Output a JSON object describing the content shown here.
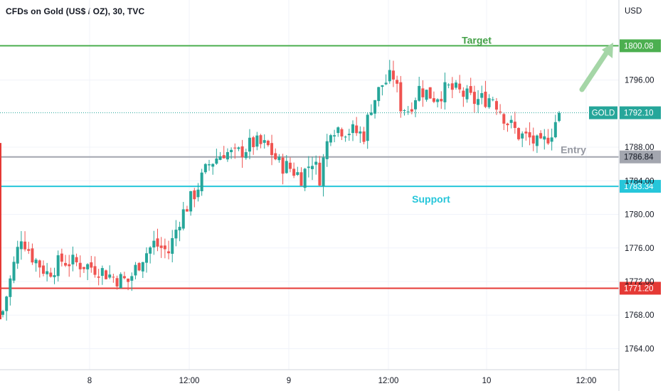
{
  "header": {
    "title": "CFDs on Gold (US$ / OZ), 30, TVC",
    "currency": "USD"
  },
  "chart_data": {
    "type": "candlestick",
    "ylim": [
      1761.5,
      1803.5
    ],
    "y_ticks": [
      "1764.00",
      "1768.00",
      "1772.00",
      "1776.00",
      "1780.00",
      "1784.00",
      "1788.00",
      "1796.00"
    ],
    "x_ticks": [
      "8",
      "12:00",
      "9",
      "12:00",
      "10",
      "12:00"
    ],
    "symbol": "GOLD",
    "last_price": "1792.10",
    "levels": [
      {
        "label": "Target",
        "value": "1800.08",
        "color": "#4caf50",
        "label_color": "#43a047"
      },
      {
        "label": "Entry",
        "value": "1786.84",
        "color": "#a3a6af",
        "label_color": "#9598a1"
      },
      {
        "label": "Support",
        "value": "1783.34",
        "color": "#26c6da",
        "label_color": "#26c6da"
      },
      {
        "label": "",
        "value": "1771.20",
        "color": "#e53935",
        "label_color": "#e53935"
      }
    ],
    "up_color": "#26a69a",
    "down_color": "#ef5350",
    "anchors": [
      [
        0,
        1768.5
      ],
      [
        3,
        1774.0
      ],
      [
        5,
        1777.5
      ],
      [
        8,
        1775.0
      ],
      [
        12,
        1773.0
      ],
      [
        16,
        1774.5
      ],
      [
        22,
        1774.0
      ],
      [
        26,
        1773.5
      ],
      [
        30,
        1772.5
      ],
      [
        34,
        1772.0
      ],
      [
        38,
        1775.0
      ],
      [
        41,
        1776.5
      ],
      [
        45,
        1775.5
      ],
      [
        48,
        1779.5
      ],
      [
        52,
        1782.5
      ],
      [
        56,
        1786.0
      ],
      [
        60,
        1787.5
      ],
      [
        63,
        1787.0
      ],
      [
        68,
        1788.5
      ],
      [
        72,
        1788.0
      ],
      [
        75,
        1786.0
      ],
      [
        78,
        1785.5
      ],
      [
        81,
        1784.5
      ],
      [
        84,
        1786.5
      ],
      [
        86,
        1784.5
      ],
      [
        89,
        1790.5
      ],
      [
        94,
        1790.0
      ],
      [
        98,
        1789.5
      ],
      [
        100,
        1793.0
      ],
      [
        103,
        1795.5
      ],
      [
        106,
        1796.5
      ],
      [
        108,
        1793.0
      ],
      [
        110,
        1792.5
      ],
      [
        113,
        1795.0
      ],
      [
        117,
        1794.0
      ],
      [
        121,
        1795.0
      ],
      [
        124,
        1794.5
      ],
      [
        128,
        1793.5
      ],
      [
        133,
        1794.0
      ],
      [
        137,
        1791.0
      ],
      [
        140,
        1789.5
      ],
      [
        143,
        1789.0
      ],
      [
        146,
        1788.0
      ],
      [
        149,
        1790.0
      ],
      [
        151,
        1792.1
      ]
    ]
  }
}
